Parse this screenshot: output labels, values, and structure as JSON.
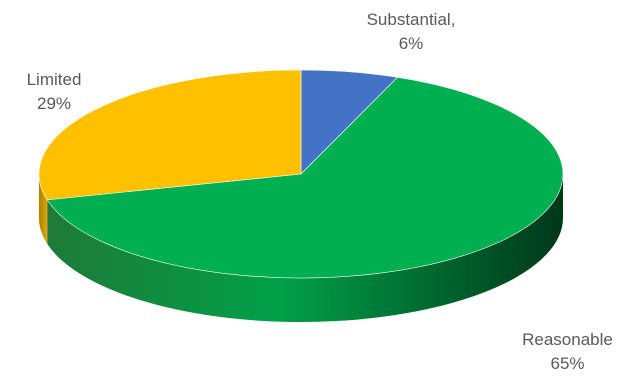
{
  "chart_data": {
    "type": "pie",
    "style": "3d",
    "title": "",
    "slices": [
      {
        "label": "Substantial",
        "label_line1": "Substantial,",
        "label_line2": "6%",
        "value": 6,
        "color": "#4472C4"
      },
      {
        "label": "Reasonable",
        "label_line1": "Reasonable",
        "label_line2": "65%",
        "value": 65,
        "color": "#00B050"
      },
      {
        "label": "Limited",
        "label_line1": "Limited",
        "label_line2": "29%",
        "value": 29,
        "color": "#FFC000"
      }
    ]
  }
}
